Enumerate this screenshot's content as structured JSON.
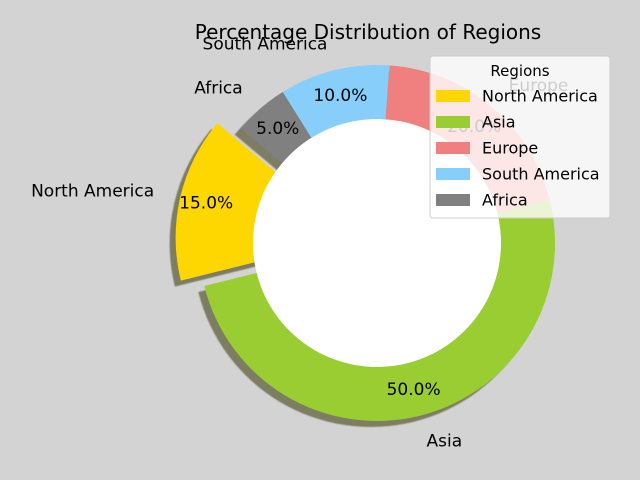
{
  "chart_data": {
    "type": "pie",
    "title": "Percentage Distribution of Regions",
    "categories": [
      "North America",
      "Asia",
      "Europe",
      "South America",
      "Africa"
    ],
    "values": [
      15.0,
      50.0,
      20.0,
      10.0,
      5.0
    ],
    "value_labels": [
      "15.0%",
      "50.0%",
      "20.0%",
      "10.0%",
      "5.0%"
    ],
    "colors": [
      "#ffd700",
      "#9acd32",
      "#f08080",
      "#87cefa",
      "#808080"
    ],
    "exploded": [
      "North America"
    ],
    "donut": true,
    "shadow": true,
    "legend": {
      "title": "Regions",
      "placement": "top-right",
      "entries": [
        "North America",
        "Asia",
        "Europe",
        "South America",
        "Africa"
      ]
    }
  }
}
